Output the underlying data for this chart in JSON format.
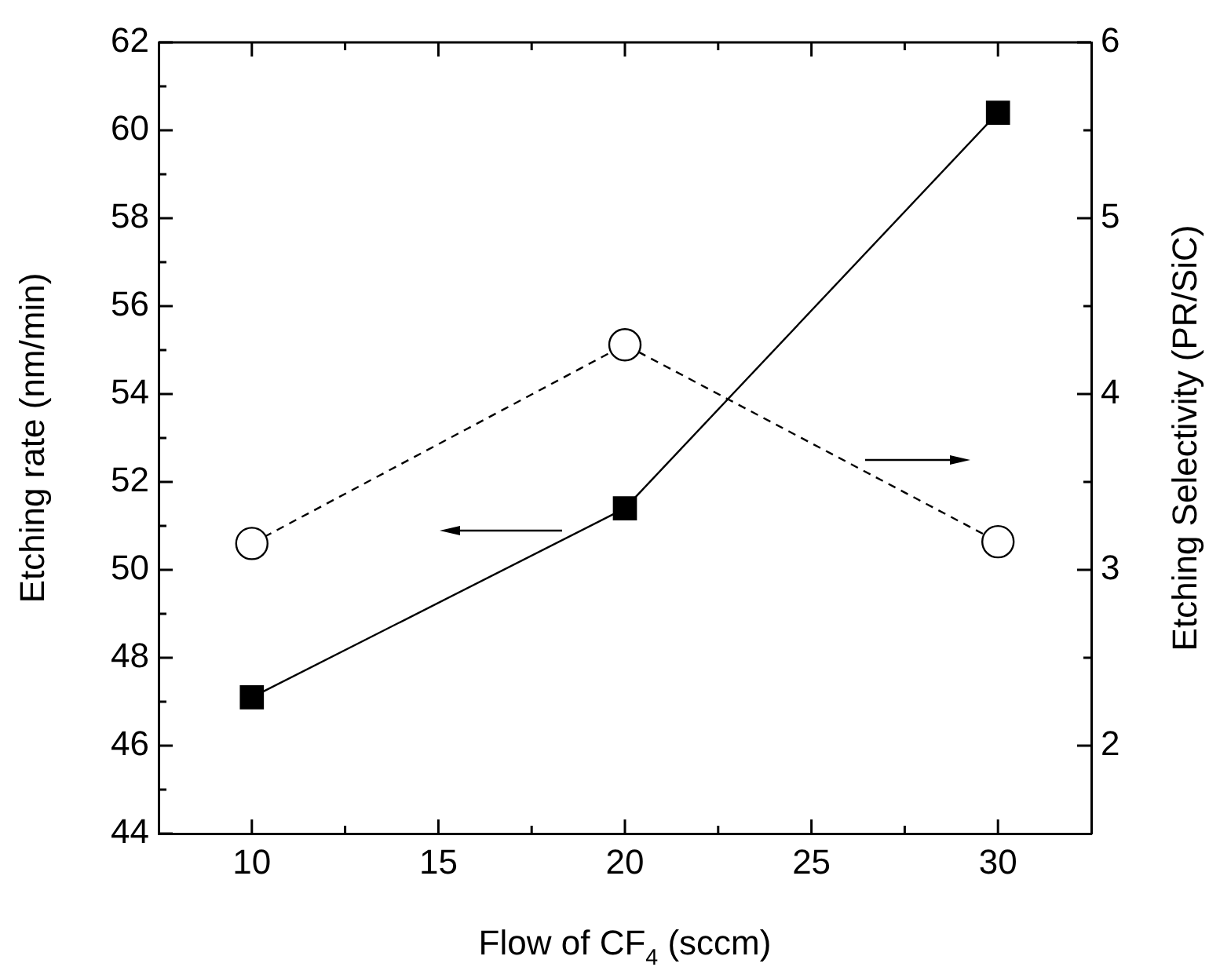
{
  "chart_data": {
    "type": "line",
    "xlabel": "Flow of CF$_{4}$ (sccm)",
    "ylabel": "Etching rate (nm/min)",
    "y2label": "Etching Selectivity (PR/SiC)",
    "x": [
      10,
      20,
      30
    ],
    "series": [
      {
        "color": "#000000",
        "values": [
          47.1,
          51.4,
          60.4
        ],
        "marker": "square",
        "line_style": "solid"
      },
      {
        "color": "#000000",
        "values": [
          3.15,
          4.28,
          3.16
        ],
        "axis": "y2",
        "marker": "circle",
        "line_style": "dashed"
      }
    ],
    "xlim": [
      7.5,
      32.5
    ],
    "xticks": [
      10,
      {
        "value": 12.5,
        "label": null
      },
      15,
      {
        "value": 17.5,
        "label": null
      },
      20,
      {
        "value": 22.5,
        "label": null
      },
      25,
      {
        "value": 27.5,
        "label": null
      },
      30
    ],
    "ylim": [
      44,
      62
    ],
    "yticks": [
      44,
      {
        "value": 45,
        "label": null
      },
      46,
      {
        "value": 47,
        "label": null
      },
      48,
      {
        "value": 49,
        "label": null
      },
      50,
      {
        "value": 51,
        "label": null
      },
      52,
      {
        "value": 53,
        "label": null
      },
      54,
      {
        "value": 55,
        "label": null
      },
      56,
      {
        "value": 57,
        "label": null
      },
      58,
      {
        "value": 59,
        "label": null
      },
      60,
      {
        "value": 61,
        "label": null
      },
      62
    ],
    "y2lim": [
      1.5,
      6
    ],
    "y2ticks": [
      2,
      {
        "value": 2.5,
        "label": null
      },
      3,
      {
        "value": 3.5,
        "label": null
      },
      4,
      {
        "value": 4.5,
        "label": null
      },
      5,
      {
        "value": 5.5,
        "label": null
      },
      6
    ],
    "grid": false,
    "legend": false
  }
}
